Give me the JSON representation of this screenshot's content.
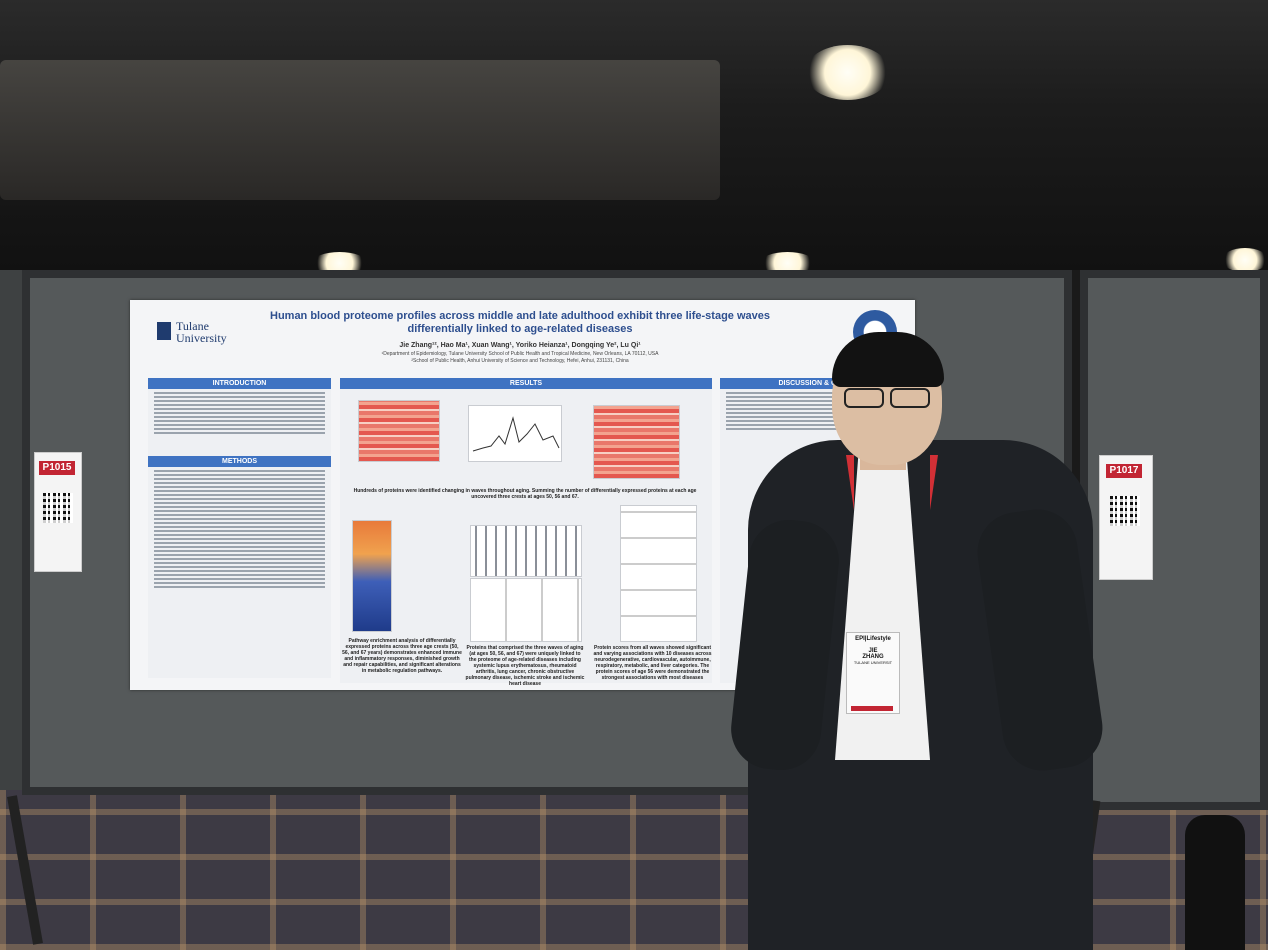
{
  "poster": {
    "title": "Human blood proteome profiles across middle and late adulthood exhibit three life-stage waves differentially linked to age-related diseases",
    "authors": "Jie Zhang¹², Hao Ma¹, Xuan Wang¹, Yoriko Heianza¹, Dongqing Ye², Lu Qi¹",
    "affiliation_1": "¹Department of Epidemiology, Tulane University School of Public Health and Tropical Medicine, New Orleans, LA 70112, USA",
    "affiliation_2": "²School of Public Health, Anhui University of Science and Technology, Hefei, Anhui, 231131, China",
    "university": "Tulane University",
    "sections": {
      "introduction": "INTRODUCTION",
      "methods": "METHODS",
      "results": "RESULTS",
      "discussion": "DISCUSSION & CONC"
    },
    "results_caption": "Hundreds of proteins were identified changing in waves throughout aging. Summing the number of differentially expressed proteins at each age uncovered three crests at ages 50, 56 and 67.",
    "caption_pathway": "Pathway enrichment analysis of differentially expressed proteins across three age crests (50, 56, and 67 years) demonstrates enhanced immune and inflammatory responses, diminished growth and repair capabilities, and significant alterations in metabolic regulation pathways.",
    "caption_proteins": "Proteins that comprised the three waves of aging (at ages 50, 56, and 67) were uniquely linked to the proteome of age-related diseases including systemic lupus erythematosus, rheumatoid arthritis, lung cancer, chronic obstructive pulmonary disease, ischemic stroke and ischemic heart disease",
    "caption_scores": "Protein scores from all waves showed significant and varying associations with 10 diseases across neurodegenerative, cardiovascular, autoimmune, respiratory, metabolic, and liver categories. The protein scores of age 56 were demonstrated the strongest associations with most diseases"
  },
  "tags": {
    "left": "P1015",
    "right": "P1017"
  },
  "badge": {
    "event": "EPI|Lifestyle",
    "first_name": "JIE",
    "last_name": "ZHANG",
    "org": "TULANE UNIVERSIT"
  }
}
